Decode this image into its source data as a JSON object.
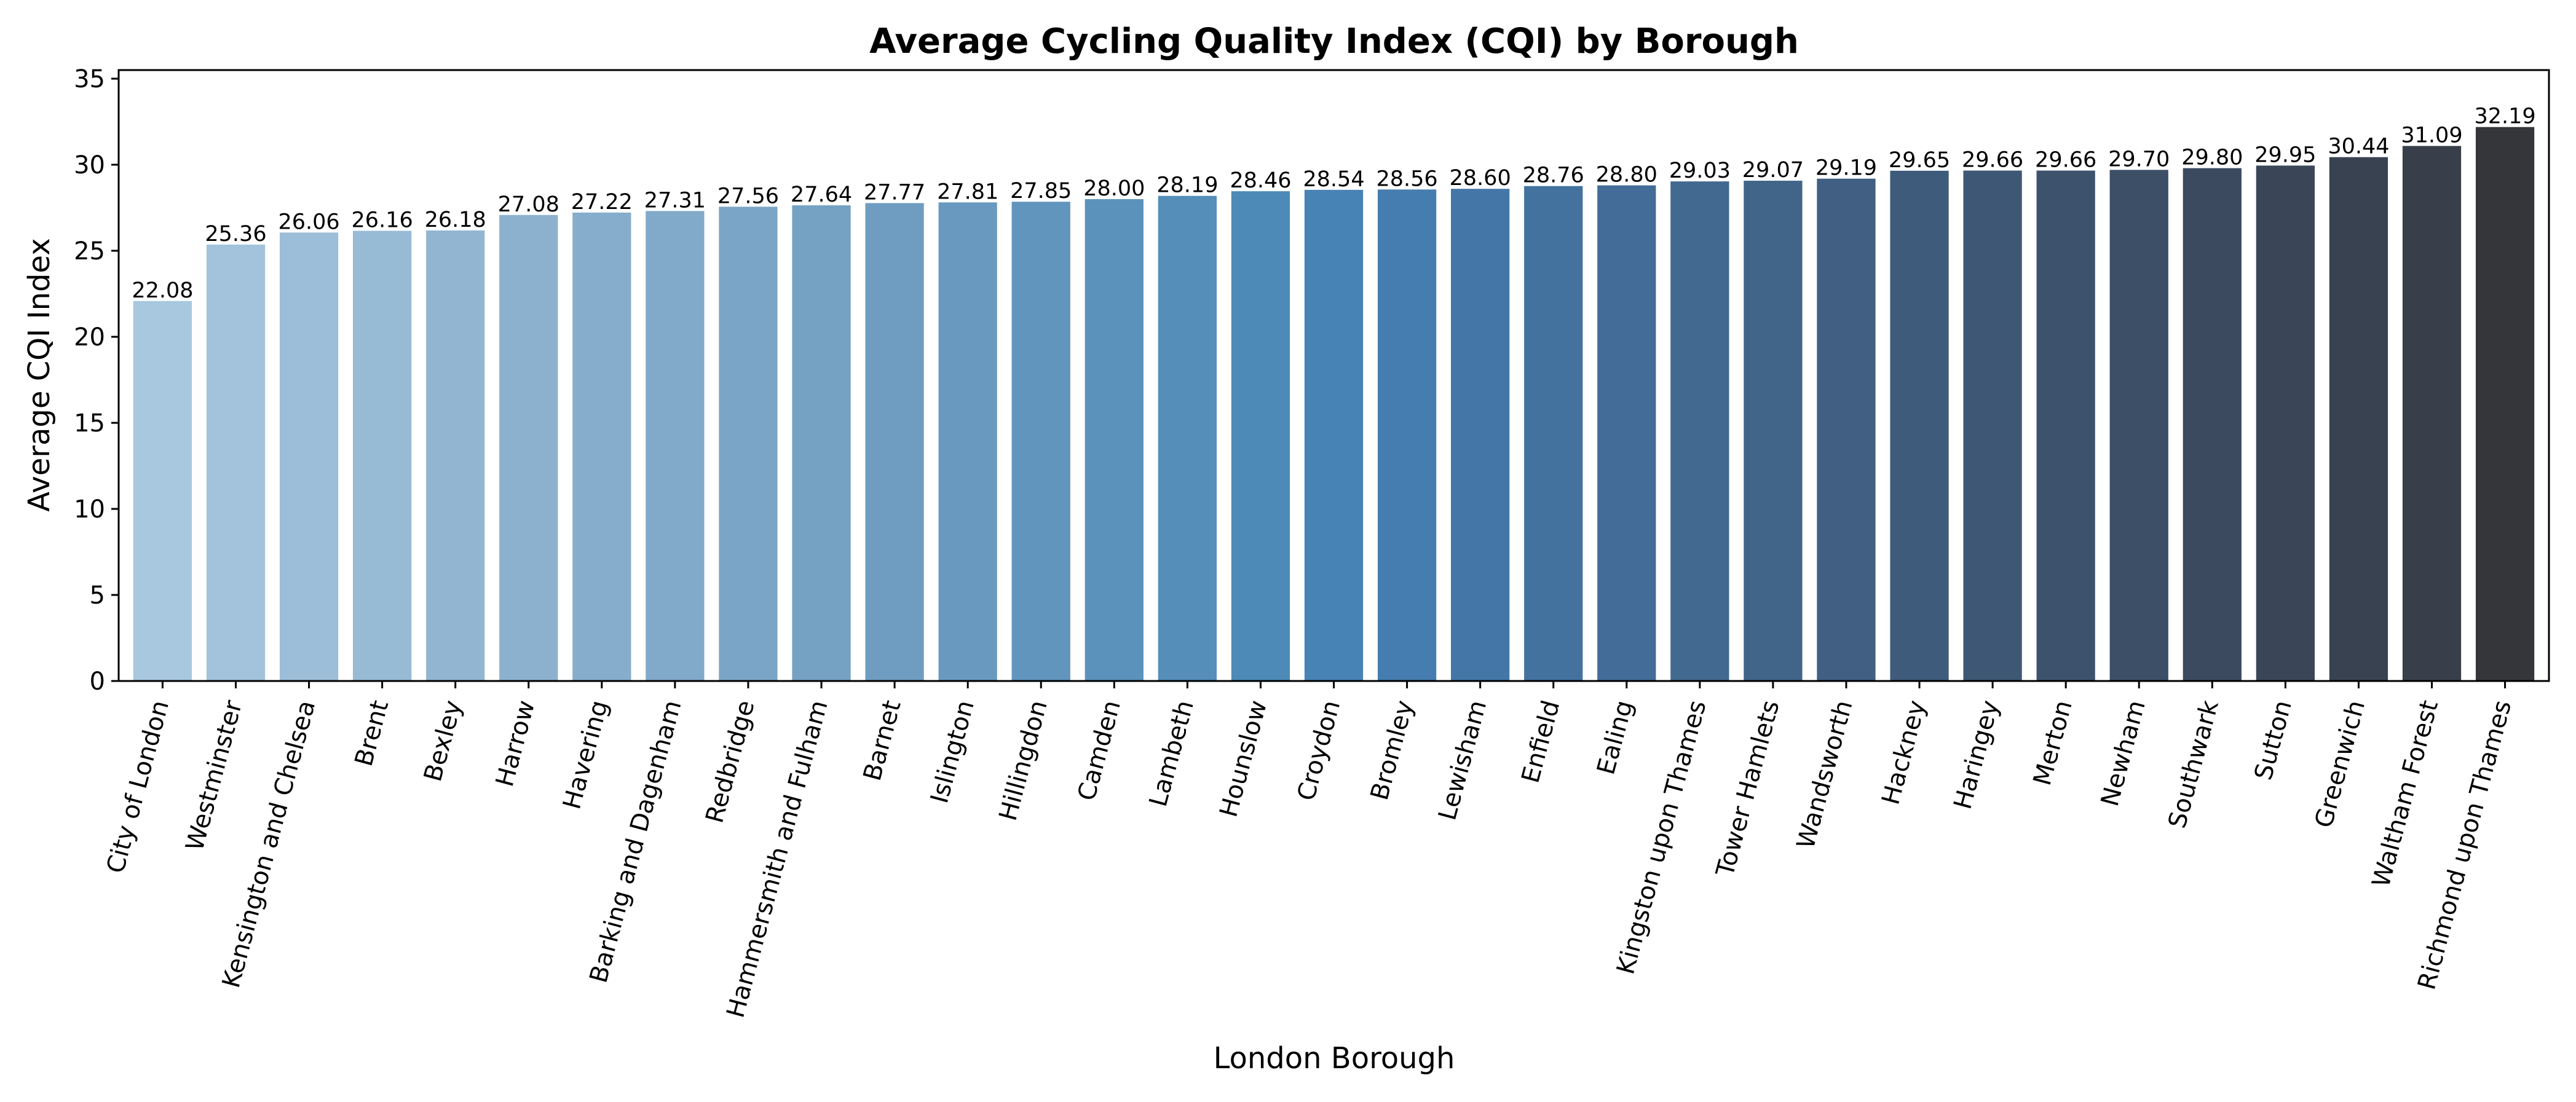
{
  "chart_data": {
    "type": "bar",
    "title": "Average Cycling Quality Index (CQI) by Borough",
    "xlabel": "London Borough",
    "ylabel": "Average CQI Index",
    "ylim": [
      0,
      35.5
    ],
    "yticks": [
      0,
      5,
      10,
      15,
      20,
      25,
      30,
      35
    ],
    "grid": false,
    "categories": [
      "City of London",
      "Westminster",
      "Kensington and Chelsea",
      "Brent",
      "Bexley",
      "Harrow",
      "Havering",
      "Barking and Dagenham",
      "Redbridge",
      "Hammersmith and Fulham",
      "Barnet",
      "Islington",
      "Hillingdon",
      "Camden",
      "Lambeth",
      "Hounslow",
      "Croydon",
      "Bromley",
      "Lewisham",
      "Enfield",
      "Ealing",
      "Kingston upon Thames",
      "Tower Hamlets",
      "Wandsworth",
      "Hackney",
      "Haringey",
      "Merton",
      "Newham",
      "Southwark",
      "Sutton",
      "Greenwich",
      "Waltham Forest",
      "Richmond upon Thames"
    ],
    "values": [
      22.08,
      25.36,
      26.06,
      26.16,
      26.18,
      27.08,
      27.22,
      27.31,
      27.56,
      27.64,
      27.77,
      27.81,
      27.85,
      28.0,
      28.19,
      28.46,
      28.54,
      28.56,
      28.6,
      28.76,
      28.8,
      29.03,
      29.07,
      29.19,
      29.65,
      29.66,
      29.66,
      29.7,
      29.8,
      29.95,
      30.44,
      31.09,
      32.19
    ],
    "value_labels": [
      "22.08",
      "25.36",
      "26.06",
      "26.16",
      "26.18",
      "27.08",
      "27.22",
      "27.31",
      "27.56",
      "27.64",
      "27.77",
      "27.81",
      "27.85",
      "28.00",
      "28.19",
      "28.46",
      "28.54",
      "28.56",
      "28.60",
      "28.76",
      "28.80",
      "29.03",
      "29.07",
      "29.19",
      "29.65",
      "29.66",
      "29.66",
      "29.70",
      "29.80",
      "29.95",
      "30.44",
      "31.09",
      "32.19"
    ],
    "colors": [
      "#a7c8de",
      "#a2c3db",
      "#9cbed8",
      "#97bad5",
      "#92b6d2",
      "#8cb1cf",
      "#86adcc",
      "#81a9c9",
      "#7ba5c6",
      "#75a1c3",
      "#6f9dc1",
      "#6999bf",
      "#6295bd",
      "#5b92bb",
      "#548eb9",
      "#4d8ab7",
      "#4883b5",
      "#467db0",
      "#4477a8",
      "#43729f",
      "#436d98",
      "#426990",
      "#416489",
      "#405f82",
      "#3f5b7b",
      "#3e5774",
      "#3d536d",
      "#3c4f66",
      "#3b4a5f",
      "#3a4658",
      "#394251",
      "#383f4a",
      "#343639"
    ]
  }
}
